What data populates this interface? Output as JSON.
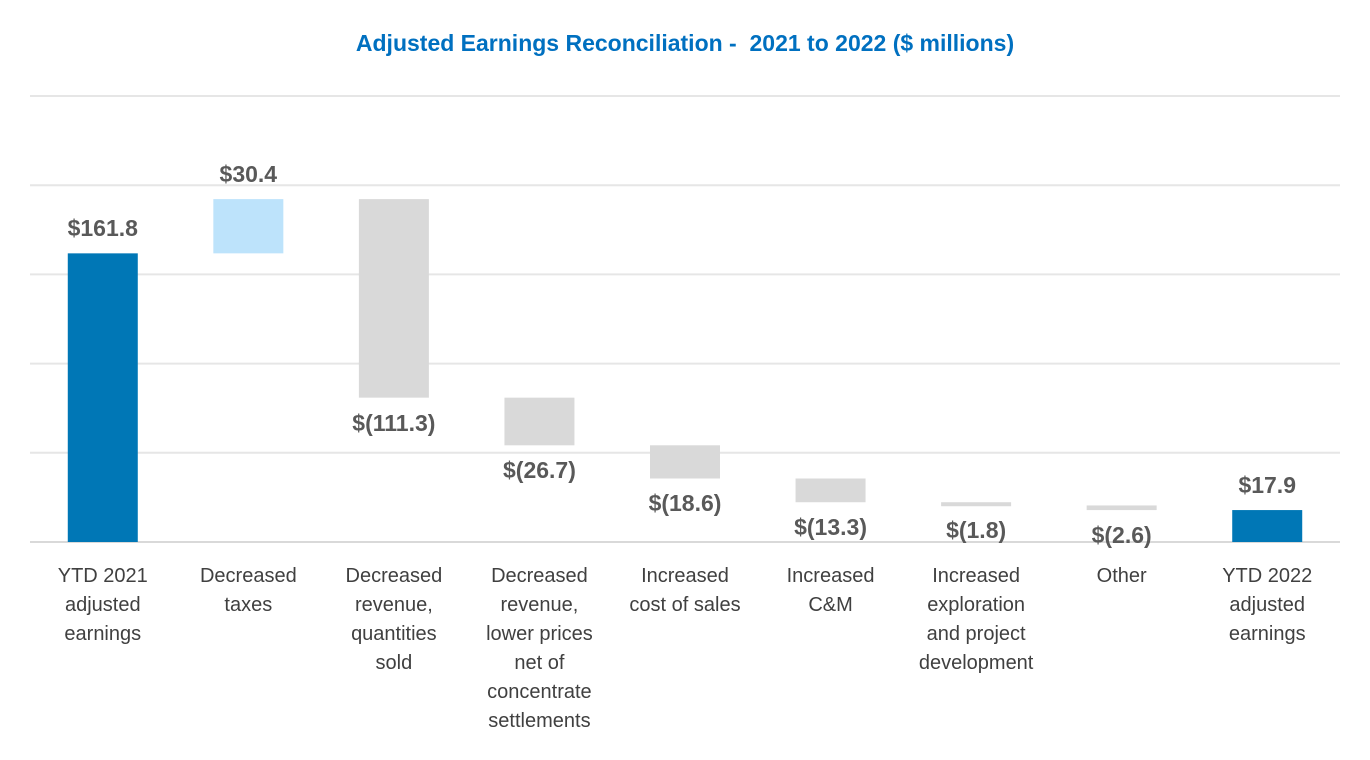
{
  "chart_data": {
    "type": "waterfall",
    "title": "Adjusted Earnings Reconciliation -  2021 to 2022 ($ millions)",
    "categories": [
      "YTD 2021\nadjusted\nearnings",
      "Decreased\ntaxes",
      "Decreased\nrevenue,\nquantities\nsold",
      "Decreased\nrevenue,\nlower prices\nnet of\nconcentrate\nsettlements",
      "Increased\ncost of sales",
      "Increased\nC&M",
      "Increased\nexploration\nand project\ndevelopment",
      "Other",
      "YTD 2022\nadjusted\nearnings"
    ],
    "values": [
      161.8,
      30.4,
      -111.3,
      -26.7,
      -18.6,
      -13.3,
      -1.8,
      -2.6,
      17.9
    ],
    "kinds": [
      "total",
      "increase",
      "decrease",
      "decrease",
      "decrease",
      "decrease",
      "decrease",
      "decrease",
      "total"
    ],
    "data_labels": [
      "$161.8",
      "$30.4",
      "$(111.3)",
      "$(26.7)",
      "$(18.6)",
      "$(13.3)",
      "$(1.8)",
      "$(2.6)",
      "$17.9"
    ],
    "ylim": [
      0,
      250
    ],
    "grid_step": 50,
    "grid": true,
    "y_tick_labels_shown": false,
    "colors": {
      "total": "#0077B6",
      "increase": "#BDE3FB",
      "decrease": "#D9D9D9",
      "title": "#0070C0",
      "grid": "#E6E6E6"
    }
  }
}
